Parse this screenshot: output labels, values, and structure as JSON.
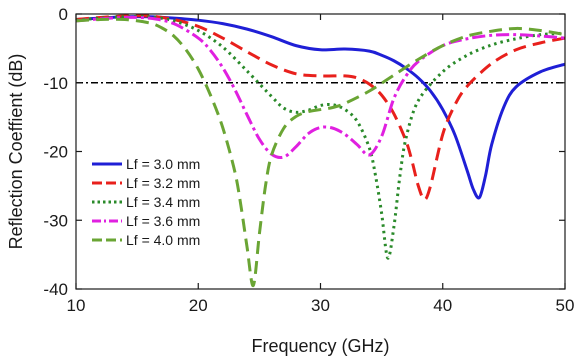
{
  "chart_data": {
    "type": "line",
    "xlabel": "Frequency (GHz)",
    "ylabel": "Reflection Coeffient (dB)",
    "xlim": [
      10,
      50
    ],
    "ylim": [
      -40,
      0
    ],
    "xticks": [
      10,
      20,
      30,
      40,
      50
    ],
    "yticks": [
      0,
      -10,
      -20,
      -30,
      -40
    ],
    "x_tick_labels": [
      "10",
      "20",
      "30",
      "40",
      "50"
    ],
    "y_tick_labels": [
      "0",
      "-10",
      "-20",
      "-30",
      "-40"
    ],
    "grid": false,
    "legend_position": "bottom-left",
    "reference_line": {
      "y": -10,
      "style": "dash-dot",
      "color": "#000000"
    },
    "series": [
      {
        "name": "Lf = 3.0 mm",
        "color": "#1f1fd6",
        "dash": "solid",
        "x": [
          10,
          12,
          14,
          16,
          18,
          20,
          22,
          24,
          26,
          28,
          30,
          32,
          34,
          35,
          36,
          37,
          38,
          39,
          40,
          41,
          42,
          42.5,
          43,
          43.5,
          44,
          45,
          46,
          48,
          50
        ],
        "y": [
          -0.8,
          -0.6,
          -0.4,
          -0.4,
          -0.6,
          -0.9,
          -1.4,
          -2.2,
          -3.3,
          -4.6,
          -5.2,
          -5.1,
          -5.4,
          -6.0,
          -6.8,
          -7.9,
          -9.3,
          -11.2,
          -13.9,
          -17.6,
          -22.8,
          -25.5,
          -26.7,
          -23.5,
          -19.0,
          -13.5,
          -10.6,
          -8.4,
          -7.3
        ]
      },
      {
        "name": "Lf = 3.2 mm",
        "color": "#e8201c",
        "dash": "long-dash",
        "x": [
          10,
          12,
          14,
          16,
          18,
          20,
          22,
          24,
          26,
          28,
          30,
          32,
          33,
          34,
          35,
          36,
          37,
          37.5,
          38,
          38.5,
          39,
          40,
          41,
          42,
          44,
          46,
          48,
          50
        ],
        "y": [
          -0.8,
          -0.5,
          -0.3,
          -0.3,
          -0.8,
          -1.8,
          -3.5,
          -5.5,
          -7.4,
          -8.7,
          -9.0,
          -9.0,
          -9.3,
          -10.2,
          -11.8,
          -14.5,
          -18.5,
          -21.5,
          -25.0,
          -27.0,
          -25.0,
          -17.5,
          -13.2,
          -10.5,
          -7.2,
          -5.2,
          -4.2,
          -3.5
        ]
      },
      {
        "name": "Lf = 3.4 mm",
        "color": "#2a8a2a",
        "dash": "dotted",
        "x": [
          10,
          12,
          14,
          16,
          18,
          20,
          22,
          24,
          26,
          27,
          28,
          29,
          30,
          31,
          32,
          33,
          34,
          34.5,
          35,
          35.5,
          36,
          36.5,
          37,
          38,
          40,
          42,
          44,
          46,
          48,
          50
        ],
        "y": [
          -0.9,
          -0.6,
          -0.4,
          -0.4,
          -1.0,
          -2.4,
          -4.8,
          -8.3,
          -12.0,
          -13.7,
          -14.3,
          -14.0,
          -13.3,
          -13.2,
          -13.9,
          -15.6,
          -19.5,
          -23.5,
          -29.0,
          -35.5,
          -31.0,
          -23.5,
          -18.0,
          -12.6,
          -8.4,
          -6.0,
          -4.5,
          -3.6,
          -3.0,
          -2.8
        ]
      },
      {
        "name": "Lf = 3.6 mm",
        "color": "#e020e0",
        "dash": "dash-dot",
        "x": [
          10,
          12,
          14,
          16,
          18,
          20,
          21,
          22,
          23,
          24,
          25,
          26,
          27,
          28,
          29,
          30,
          31,
          32,
          33,
          34,
          35,
          36,
          37,
          38,
          40,
          42,
          44,
          46,
          48,
          50
        ],
        "y": [
          -1.0,
          -0.7,
          -0.5,
          -0.6,
          -1.4,
          -3.5,
          -5.3,
          -7.8,
          -11.0,
          -14.7,
          -18.2,
          -20.4,
          -20.8,
          -19.3,
          -17.4,
          -16.5,
          -16.6,
          -17.5,
          -19.0,
          -20.5,
          -17.8,
          -12.3,
          -9.0,
          -6.9,
          -4.6,
          -3.6,
          -3.1,
          -3.0,
          -3.2,
          -3.5
        ]
      },
      {
        "name": "Lf = 4.0 mm",
        "color": "#6aa534",
        "dash": "long-dash",
        "x": [
          10,
          12,
          14,
          16,
          17,
          18,
          19,
          20,
          21,
          22,
          23,
          23.5,
          24,
          24.5,
          25,
          25.5,
          26,
          27,
          28,
          29,
          30,
          31,
          32,
          34,
          36,
          38,
          40,
          42,
          44,
          46,
          48,
          50
        ],
        "y": [
          -1.0,
          -0.8,
          -0.8,
          -1.3,
          -2.0,
          -3.2,
          -5.2,
          -8.0,
          -11.8,
          -16.5,
          -23.0,
          -28.0,
          -34.0,
          -39.5,
          -32.0,
          -25.0,
          -20.5,
          -16.6,
          -14.9,
          -14.2,
          -13.9,
          -13.6,
          -13.0,
          -11.2,
          -8.9,
          -6.6,
          -4.6,
          -3.2,
          -2.5,
          -2.1,
          -2.4,
          -3.0
        ]
      }
    ]
  }
}
